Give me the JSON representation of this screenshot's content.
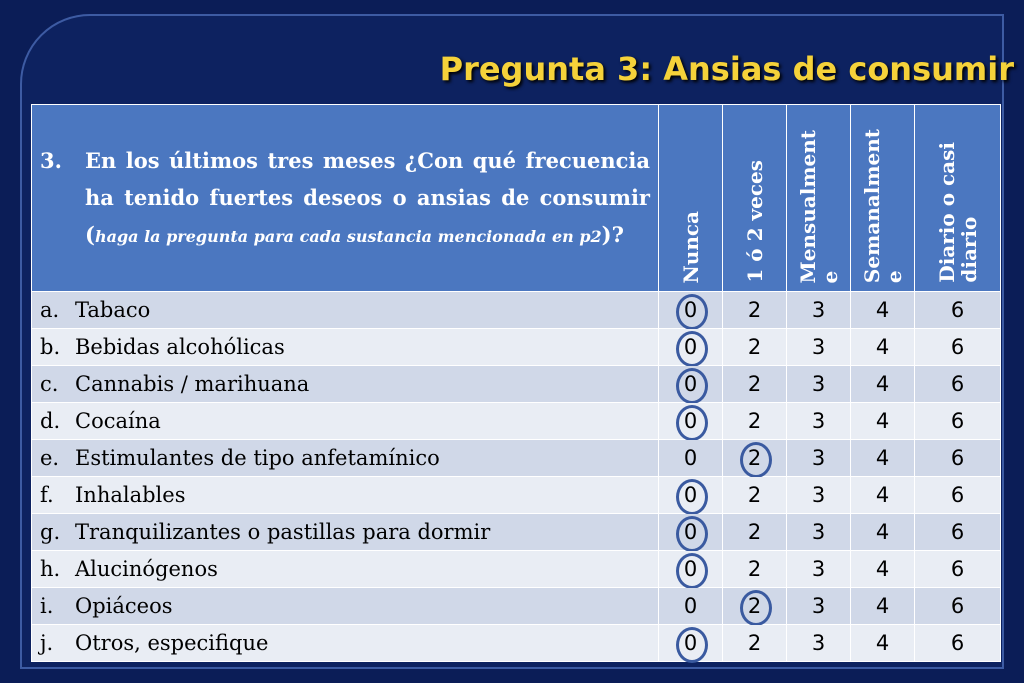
{
  "title": "Pregunta 3: Ansias de consumir",
  "question": {
    "number": "3.",
    "text": "En los últimos tres meses ¿Con qué frecuencia ha tenido fuertes deseos o ansias de consumir (",
    "italic": "haga la pregunta para cada sustancia mencionada en p2",
    "end": ")?"
  },
  "columns": [
    "Nunca",
    "1 ó 2 veces",
    "Mensualment\ne",
    "Semanalment\ne",
    "Diario o casi\ndiario"
  ],
  "scale": [
    "0",
    "2",
    "3",
    "4",
    "6"
  ],
  "rows": [
    {
      "letter": "a.",
      "label": "Tabaco",
      "selected": "0"
    },
    {
      "letter": "b.",
      "label": "Bebidas alcohólicas",
      "selected": "0"
    },
    {
      "letter": "c.",
      "label": "Cannabis / marihuana",
      "selected": "0"
    },
    {
      "letter": "d.",
      "label": "Cocaína",
      "selected": "0"
    },
    {
      "letter": "e.",
      "label": "Estimulantes de tipo anfetamínico",
      "selected": "2"
    },
    {
      "letter": "f.",
      "label": "Inhalables",
      "selected": "0"
    },
    {
      "letter": "g.",
      "label": "Tranquilizantes o pastillas para dormir",
      "selected": "0"
    },
    {
      "letter": "h.",
      "label": "Alucinógenos",
      "selected": "0"
    },
    {
      "letter": "i.",
      "label": "Opiáceos",
      "selected": "2"
    },
    {
      "letter": "j.",
      "label": "Otros, especifique",
      "selected": "0"
    }
  ],
  "colors": {
    "title": "#f5d23a",
    "header": "#4b77c0",
    "circle": "#3a5aa0"
  }
}
